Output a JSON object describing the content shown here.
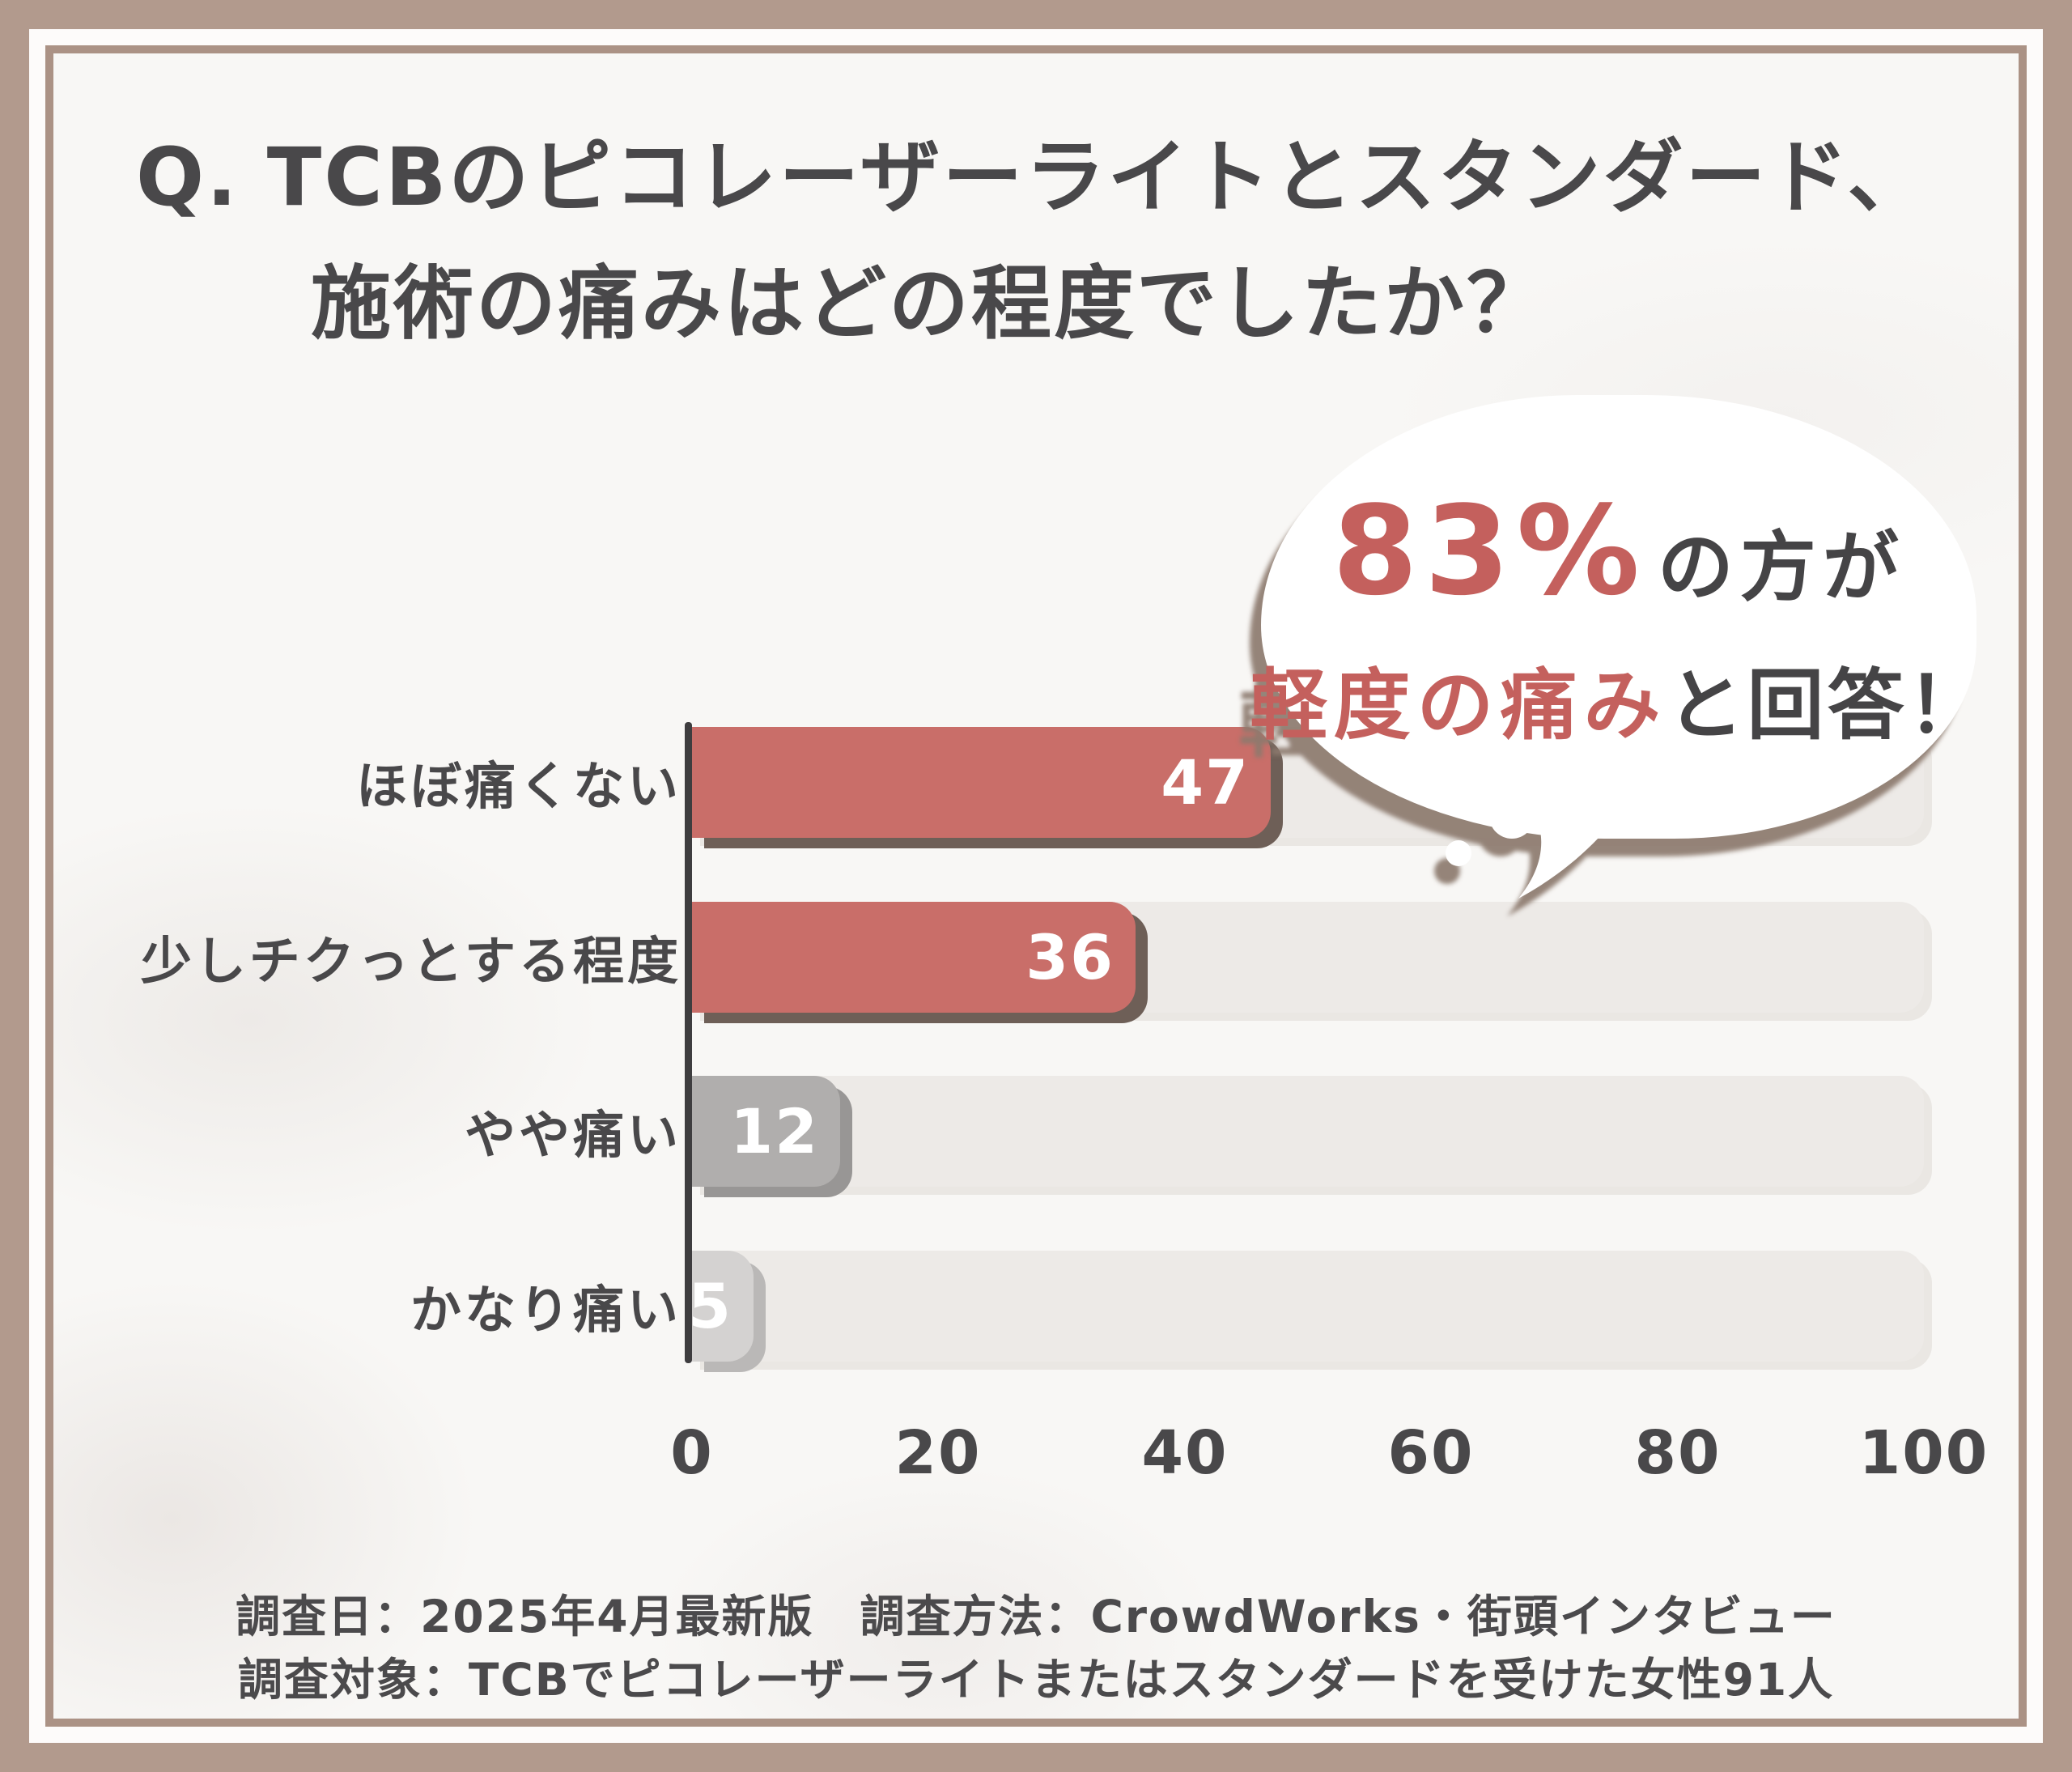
{
  "title": {
    "prefix": "Q.",
    "line1": "TCBのピコレーザーライトとスタンダード、",
    "line2": "施術の痛みはどの程度でしたか？"
  },
  "bubble": {
    "percent": "83%",
    "after_percent": "の方が",
    "highlight": "軽度の痛み",
    "after_highlight": "と回答！"
  },
  "chart_data": {
    "type": "bar",
    "orientation": "horizontal",
    "title": "",
    "categories": [
      "ほぼ痛くない",
      "少しチクっとする程度",
      "やや痛い",
      "かなり痛い"
    ],
    "values": [
      47,
      36,
      12,
      5
    ],
    "xlabel": "",
    "ylabel": "",
    "xlim": [
      0,
      100
    ],
    "x_ticks": [
      0,
      20,
      40,
      60,
      80,
      100
    ],
    "grid": false,
    "legend": "none",
    "value_label_position": "inside-end",
    "bar_colors": [
      "#c96e69",
      "#c96e69",
      "#b0aead",
      "#d4d2d1"
    ],
    "bar_shadow_colors": [
      "#6e5f57",
      "#6e5f57",
      "#989695",
      "#bab8b7"
    ]
  },
  "footer": {
    "line1": "調査日：2025年4月最新版　調査方法：CrowdWorks・街頭インタビュー",
    "line2": "調査対象：TCBでピコレーザーライトまたはスタンダードを受けた女性91人"
  },
  "colors": {
    "frame_brown": "#b29a8d",
    "inner_border_brown": "#ab9285",
    "panel_background": "#f8f7f5",
    "dark_text": "#49484a",
    "accent_red": "#c4605d",
    "track": "#edeae7",
    "axis": "#3e3d3f",
    "bubble_shadow": "#8c7a6e",
    "value_label": "#ffffff"
  }
}
